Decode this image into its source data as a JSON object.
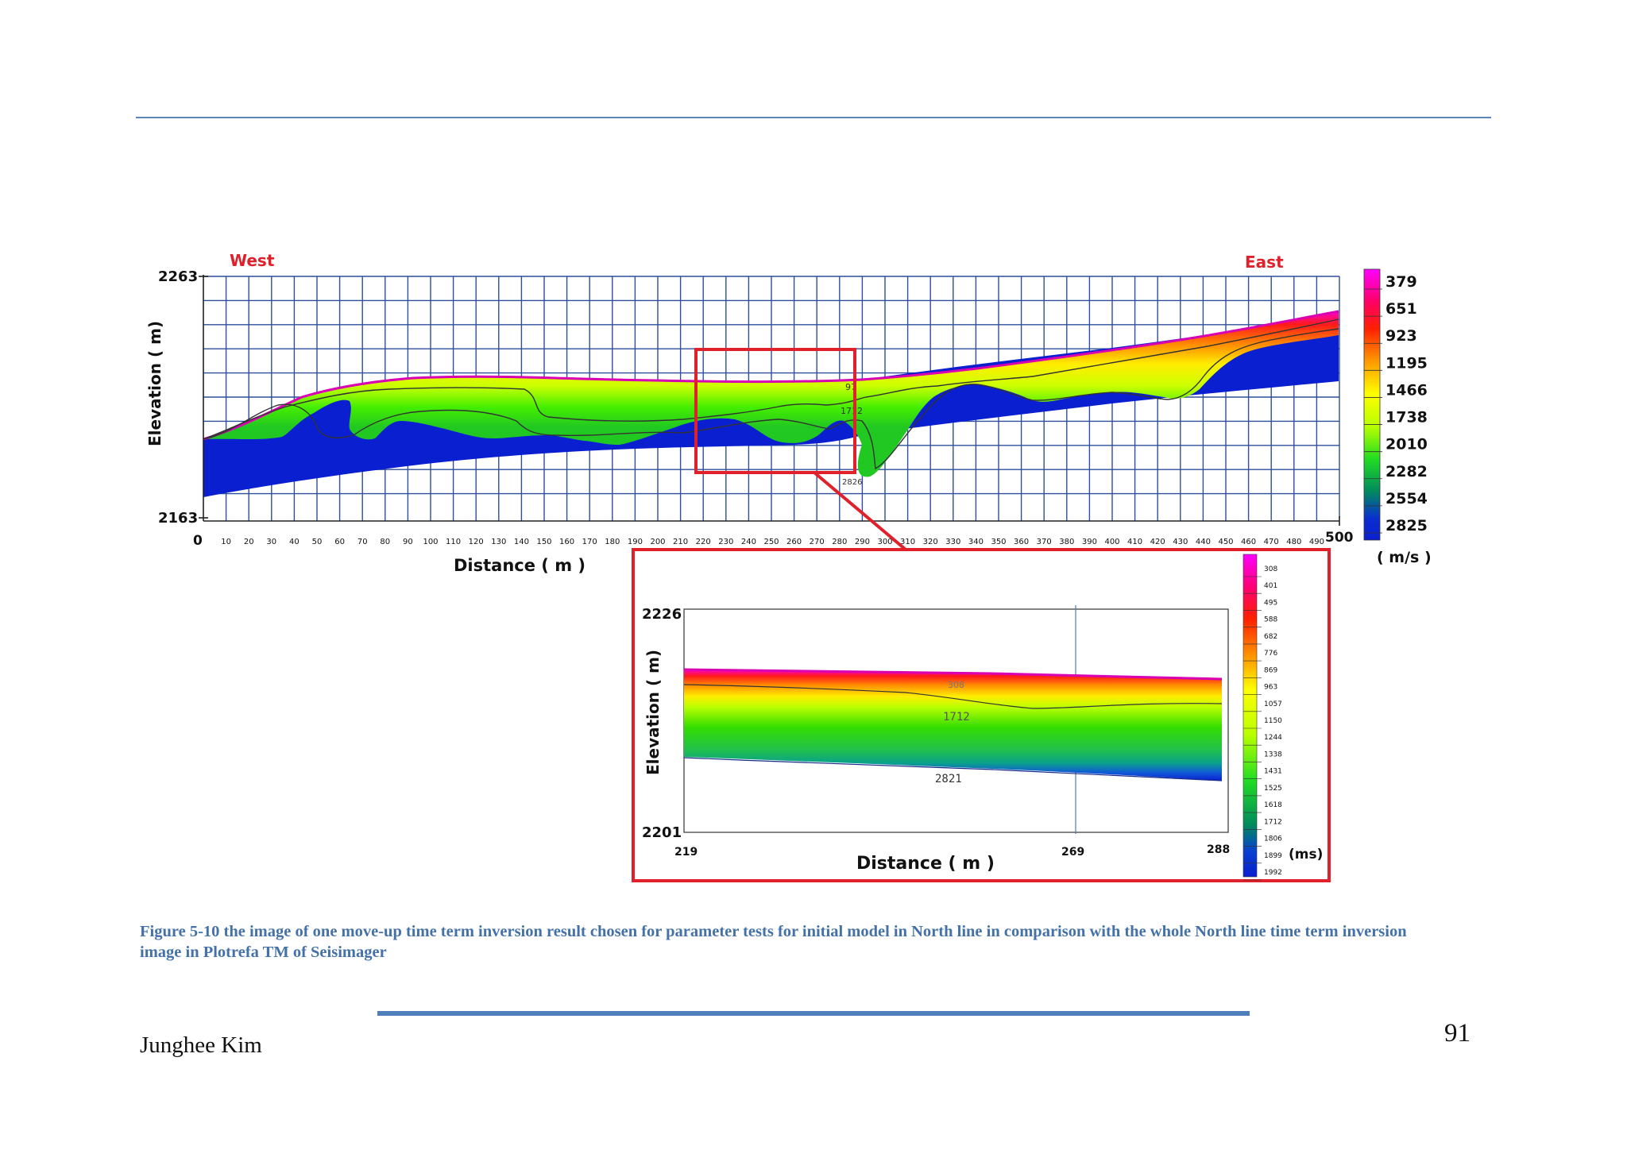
{
  "main": {
    "west_label": "West",
    "east_label": "East",
    "y_axis_label": "Elevation ( m)",
    "x_axis_label": "Distance ( m )",
    "y_top": "2263",
    "y_bottom": "2163",
    "x_start": "0",
    "x_end": "500",
    "x_ticks": [
      "10",
      "20",
      "30",
      "40",
      "50",
      "60",
      "70",
      "80",
      "90",
      "100",
      "110",
      "120",
      "130",
      "140",
      "150",
      "160",
      "170",
      "180",
      "190",
      "200",
      "210",
      "220",
      "230",
      "240",
      "250",
      "260",
      "270",
      "280",
      "290",
      "300",
      "310",
      "320",
      "330",
      "340",
      "350",
      "360",
      "370",
      "380",
      "390",
      "400",
      "410",
      "420",
      "430",
      "440",
      "450",
      "460",
      "470",
      "480",
      "490"
    ],
    "annotations": [
      "97",
      "1712",
      "2826"
    ],
    "legend_values": [
      "379",
      "651",
      "923",
      "1195",
      "1466",
      "1738",
      "2010",
      "2282",
      "2554",
      "2825"
    ],
    "legend_unit": "( m/s )"
  },
  "inset": {
    "y_axis_label": "Elevation ( m)",
    "x_axis_label": "Distance ( m )",
    "y_top": "2226",
    "y_bottom": "2201",
    "x_left": "219",
    "x_mid": "269",
    "x_right": "288",
    "contour_labels": [
      "308",
      "1712",
      "2821"
    ],
    "legend_values": [
      "308",
      "401",
      "495",
      "588",
      "682",
      "776",
      "869",
      "963",
      "1057",
      "1150",
      "1244",
      "1338",
      "1431",
      "1525",
      "1618",
      "1712",
      "1806",
      "1899",
      "1992"
    ],
    "legend_unit": "(ms)"
  },
  "colors": {
    "magenta": "#ff00ff",
    "red": "#ff1010",
    "orange": "#ff8a00",
    "yellow": "#ffff00",
    "green": "#22cc22",
    "teal": "#00806a",
    "blue": "#0a1fd0",
    "grid": "#2e4e9a",
    "accent_red": "#e0202a",
    "caption_blue": "#4472a8"
  },
  "caption": "Figure 5-10 the image of one move-up time term inversion result chosen for parameter tests for initial model in North line in comparison with the whole North line time term inversion image in Plotrefa TM of Seisimager",
  "footer": {
    "author": "Junghee Kim",
    "page_number": "91"
  }
}
